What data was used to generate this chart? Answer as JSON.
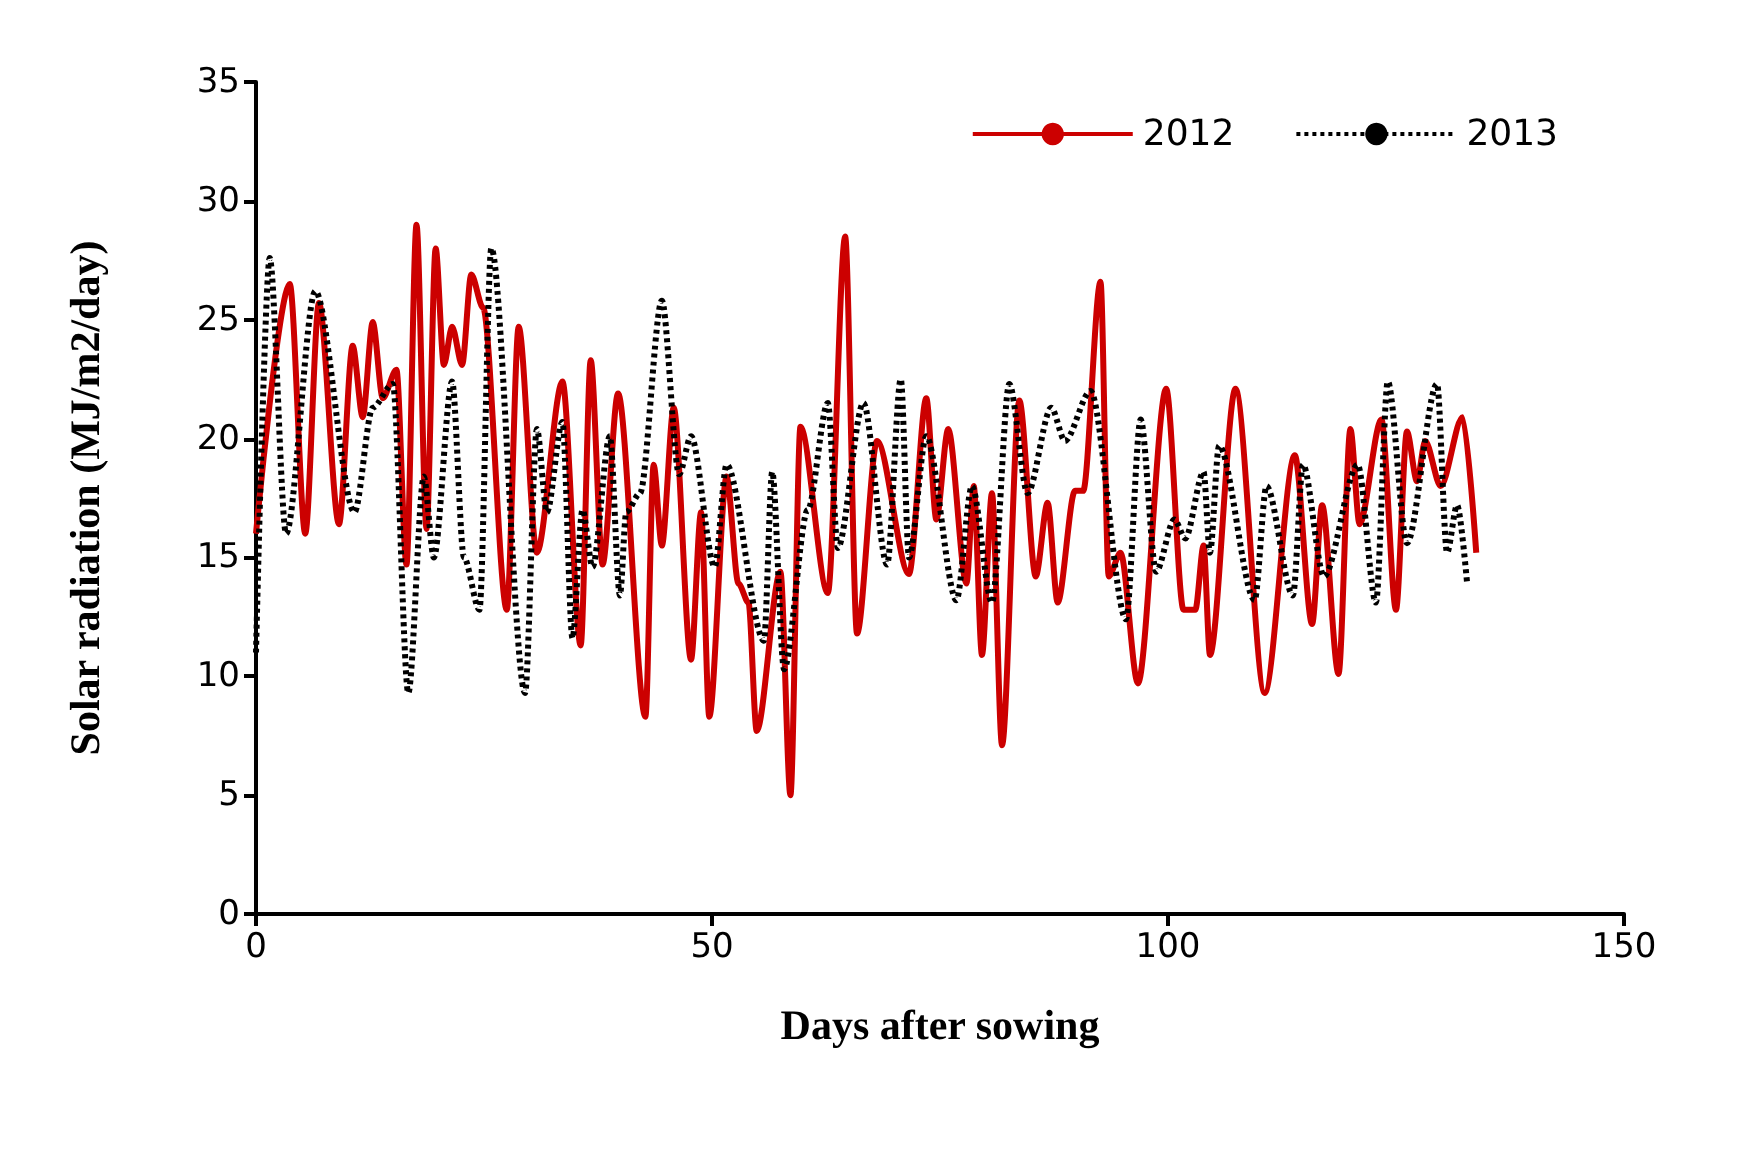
{
  "chart_data": {
    "type": "line",
    "xlabel": "Days after sowing",
    "ylabel": "Solar radiation (MJ/m2/day)",
    "xlim": [
      0,
      150
    ],
    "xticks": [
      0,
      50,
      100,
      150
    ],
    "ylim": [
      0,
      35
    ],
    "yticks": [
      0,
      5,
      10,
      15,
      20,
      25,
      30,
      35
    ],
    "grid": false,
    "legend": "top right",
    "marker": "none",
    "series": [
      {
        "name": "2012",
        "color": "#cc0000",
        "line_style": "solid",
        "x": [
          0,
          3.7,
          5.4,
          6.9,
          9.1,
          10.6,
          11.7,
          12.8,
          13.9,
          15.4,
          16.5,
          17.6,
          18.7,
          19.7,
          20.6,
          21.5,
          22.6,
          23.6,
          24.9,
          27.5,
          28.8,
          30.8,
          33.6,
          35.6,
          36.7,
          38,
          39.7,
          42.7,
          43.6,
          44.5,
          45.8,
          47.7,
          48.8,
          49.7,
          51.6,
          52.9,
          54,
          54.9,
          57.5,
          58.6,
          59.7,
          62.7,
          64.6,
          65.9,
          68.1,
          71.6,
          73.5,
          74.6,
          75.9,
          77.9,
          78.7,
          79.6,
          80.7,
          81.8,
          83.7,
          85.5,
          86.8,
          87.9,
          89.8,
          90.7,
          92.6,
          93.5,
          94.8,
          96.7,
          99.8,
          101.7,
          103,
          103.9,
          104.6,
          107.4,
          110.6,
          113.9,
          115.8,
          116.9,
          118.7,
          120,
          121,
          123.4,
          125,
          126.2,
          127.3,
          128.2,
          129.9,
          132.3,
          133.8
        ],
        "values": [
          16,
          26.5,
          16,
          25.7,
          16.4,
          23.9,
          20.9,
          24.9,
          21.7,
          22.9,
          14.7,
          29,
          16.2,
          28,
          23.1,
          24.7,
          23.1,
          26.9,
          25.5,
          12.8,
          24.7,
          15.2,
          22.4,
          11.3,
          23.3,
          14.7,
          21.9,
          8.3,
          18.9,
          15.5,
          21.3,
          10.7,
          16.9,
          8.3,
          18.4,
          13.9,
          13.1,
          7.7,
          14.4,
          5,
          20.5,
          13.5,
          28.5,
          11.8,
          19.9,
          14.3,
          21.7,
          16.6,
          20.4,
          13.9,
          18,
          10.9,
          17.7,
          7.1,
          21.6,
          14.2,
          17.3,
          13.1,
          17.8,
          17.8,
          26.6,
          14.2,
          15.2,
          9.7,
          22.1,
          12.8,
          12.8,
          15.5,
          10.9,
          22.1,
          9.3,
          19.3,
          12.2,
          17.2,
          10.1,
          20.4,
          16.4,
          20.8,
          12.8,
          20.3,
          18.2,
          19.9,
          18,
          20.9,
          15.2
        ]
      },
      {
        "name": "2013",
        "color": "#000000",
        "line_style": "dotted",
        "x": [
          0,
          1.5,
          3.3,
          6.5,
          10.8,
          12.8,
          15,
          16.7,
          18.4,
          19.5,
          21.5,
          22.8,
          24.5,
          25.8,
          29.5,
          30.8,
          31.9,
          33.6,
          34.7,
          35.8,
          36.9,
          38.8,
          39.9,
          40.6,
          42.1,
          44.5,
          46.4,
          47.7,
          50.3,
          51.6,
          55.7,
          56.6,
          57.9,
          60.5,
          62.7,
          63.8,
          66.6,
          69.2,
          70.7,
          71.6,
          73.5,
          76.8,
          78.5,
          80.7,
          82.6,
          84.6,
          87.2,
          88.7,
          91.5,
          95.4,
          97,
          98.7,
          100.7,
          101.9,
          103.9,
          104.6,
          105.6,
          109.5,
          110.8,
          113.7,
          114.8,
          117.1,
          120.8,
          122.8,
          124.1,
          126.2,
          129.5,
          130.6,
          131.7,
          132.8
        ],
        "values": [
          11,
          27.6,
          16,
          26.2,
          16.9,
          21.3,
          22.3,
          9.3,
          18.4,
          15,
          22.4,
          15,
          12.8,
          28,
          9.3,
          20.4,
          16.9,
          20.7,
          11.6,
          17,
          14.6,
          20.1,
          13.4,
          16.9,
          17.7,
          25.8,
          18.5,
          20.1,
          14.6,
          18.9,
          11.5,
          18.6,
          10.3,
          17,
          21.5,
          15.4,
          21.5,
          14.7,
          22.5,
          15,
          20.1,
          13.2,
          18,
          13.1,
          22.3,
          17.7,
          21.3,
          19.9,
          22,
          12.4,
          20.8,
          14.4,
          16.6,
          15.8,
          18.6,
          15.2,
          19.7,
          13.2,
          18,
          13.4,
          18.9,
          14.2,
          18.9,
          13.1,
          22.4,
          15.6,
          22.3,
          15.2,
          17.2,
          13.9
        ]
      }
    ]
  }
}
